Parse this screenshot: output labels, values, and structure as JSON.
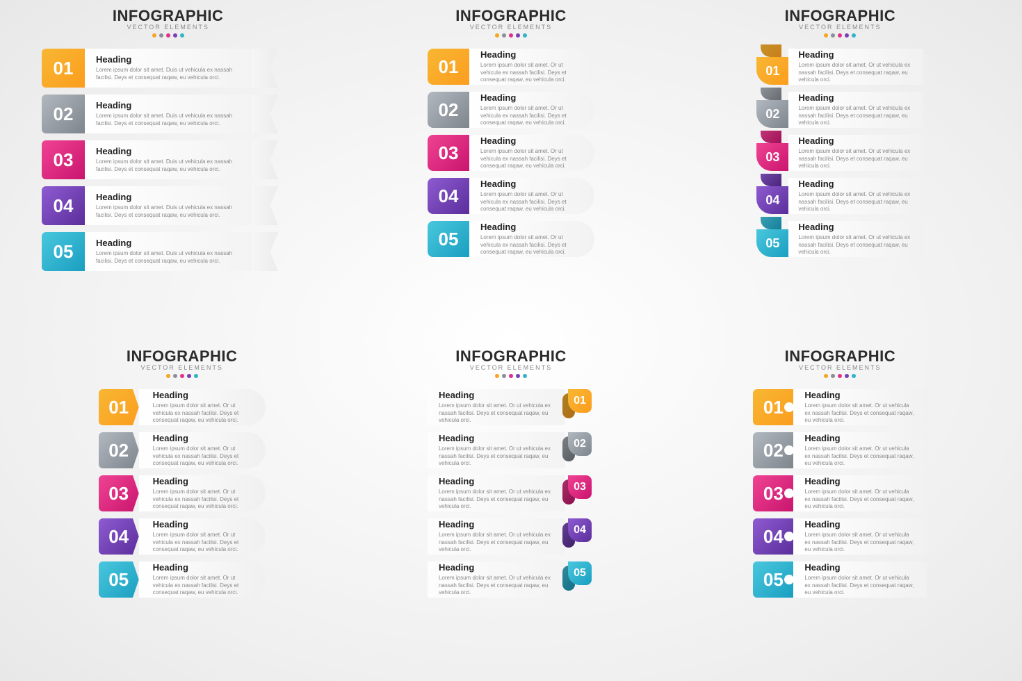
{
  "title": "INFOGRAPHIC",
  "subtitle": "VECTOR ELEMENTS",
  "dot_colors": [
    "#f5a623",
    "#8a8f98",
    "#e0318a",
    "#7a3fb5",
    "#2fb4c9"
  ],
  "heading": "Heading",
  "body_long": "Lorem ipsum dolor sit amet. Duis ut vehicula ex nassah facilisi. Deys et consequat raqaw, eu vehicula orci.",
  "body_short": "Lorem ipsum dolor sit amet. Or ut vehicula ex nassah facilisi. Deys et consequat raqaw, eu vehicula orci.",
  "items": [
    {
      "num": "01",
      "g1": "#f7b733",
      "g2": "#fc9d1e"
    },
    {
      "num": "02",
      "g1": "#b2b8bf",
      "g2": "#7e858d"
    },
    {
      "num": "03",
      "g1": "#f04393",
      "g2": "#c9156e"
    },
    {
      "num": "04",
      "g1": "#8e5bd1",
      "g2": "#5b2e9b"
    },
    {
      "num": "05",
      "g1": "#49c7dd",
      "g2": "#1a9fc1"
    }
  ],
  "panels": [
    {
      "style": "sA",
      "klass": "p1",
      "body": "body_long"
    },
    {
      "style": "sB",
      "klass": "p2",
      "body": "body_short"
    },
    {
      "style": "sC",
      "klass": "p3",
      "body": "body_short"
    },
    {
      "style": "sD",
      "klass": "p4",
      "body": "body_short"
    },
    {
      "style": "sE",
      "klass": "p5",
      "body": "body_short"
    },
    {
      "style": "sF",
      "klass": "p6",
      "body": "body_short"
    }
  ]
}
